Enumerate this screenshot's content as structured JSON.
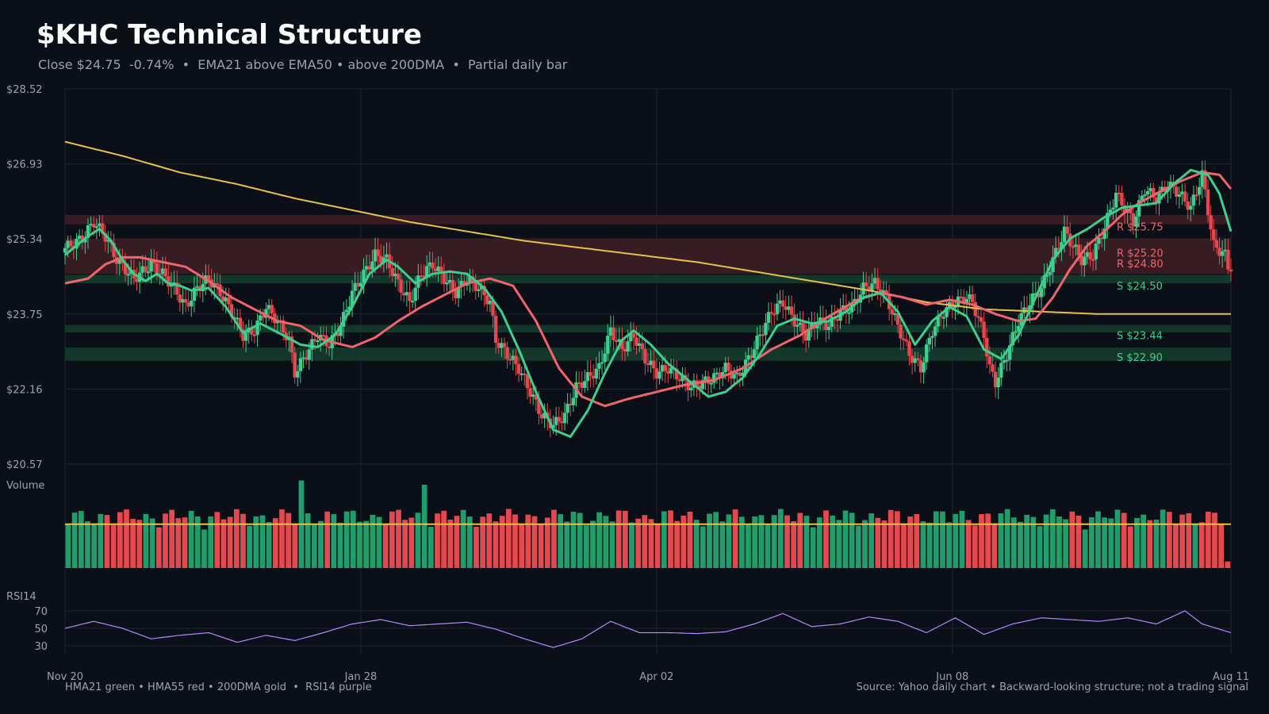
{
  "header": {
    "title": "$KHC Technical Structure",
    "subtitle": "Close $24.75  -0.74%  •  EMA21 above EMA50 • above 200DMA  •  Partial daily bar"
  },
  "footer": {
    "left": "HMA21 green • HMA55 red • 200DMA gold  •  RSI14 purple",
    "right": "Source: Yahoo daily chart • Backward-looking structure; not a trading signal"
  },
  "colors": {
    "background": "#0b0f17",
    "up": "#1f9d6b",
    "down": "#e5484d",
    "hma21": "#3ccf8e",
    "hma55": "#f0656b",
    "dma200": "#e8c14a",
    "rsi": "#b388ff",
    "grid": "#1f2633",
    "resistance_zone": "#3a1d24",
    "support_zone": "#143a2c"
  },
  "chart_data": {
    "type": "candlestick",
    "x_tick_labels": [
      "Nov 20",
      "Jan 28",
      "Apr 02",
      "Jun 08",
      "Aug 11"
    ],
    "price_axis": {
      "min": 20.57,
      "max": 28.52,
      "ticks": [
        "$28.52",
        "$26.93",
        "$25.34",
        "$23.75",
        "$22.16",
        "$20.57"
      ]
    },
    "volume_label": "Volume",
    "rsi_label": "RSI14",
    "rsi_ticks": [
      "70",
      "50",
      "30"
    ],
    "levels": [
      {
        "kind": "resistance",
        "label": "R $25.75",
        "value": 25.75
      },
      {
        "kind": "resistance",
        "label": "R $25.20",
        "value": 25.2
      },
      {
        "kind": "resistance",
        "label": "R $24.80",
        "value": 24.8
      },
      {
        "kind": "support",
        "label": "S $24.50",
        "value": 24.5
      },
      {
        "kind": "support",
        "label": "S $23.44",
        "value": 23.44
      },
      {
        "kind": "support",
        "label": "S $22.90",
        "value": 22.9
      }
    ],
    "close_path": [
      [
        0,
        25.15
      ],
      [
        6,
        25.35
      ],
      [
        10,
        25.7
      ],
      [
        14,
        25.4
      ],
      [
        18,
        24.9
      ],
      [
        24,
        24.5
      ],
      [
        30,
        24.8
      ],
      [
        34,
        24.6
      ],
      [
        38,
        24.3
      ],
      [
        42,
        23.9
      ],
      [
        46,
        24.3
      ],
      [
        50,
        24.5
      ],
      [
        54,
        24.2
      ],
      [
        58,
        23.8
      ],
      [
        62,
        23.3
      ],
      [
        66,
        23.4
      ],
      [
        70,
        23.9
      ],
      [
        74,
        23.6
      ],
      [
        78,
        23.2
      ],
      [
        80,
        22.5
      ],
      [
        84,
        22.9
      ],
      [
        88,
        23.3
      ],
      [
        92,
        23.1
      ],
      [
        96,
        23.5
      ],
      [
        100,
        24.2
      ],
      [
        104,
        24.6
      ],
      [
        108,
        25.0
      ],
      [
        112,
        24.9
      ],
      [
        116,
        24.4
      ],
      [
        120,
        24.0
      ],
      [
        124,
        24.6
      ],
      [
        128,
        24.8
      ],
      [
        132,
        24.5
      ],
      [
        136,
        24.2
      ],
      [
        140,
        24.5
      ],
      [
        144,
        24.3
      ],
      [
        148,
        24.0
      ],
      [
        150,
        23.2
      ],
      [
        154,
        22.9
      ],
      [
        158,
        22.6
      ],
      [
        162,
        22.1
      ],
      [
        166,
        21.6
      ],
      [
        170,
        21.4
      ],
      [
        174,
        21.6
      ],
      [
        178,
        22.2
      ],
      [
        182,
        22.4
      ],
      [
        186,
        22.6
      ],
      [
        190,
        23.4
      ],
      [
        194,
        23.0
      ],
      [
        198,
        23.3
      ],
      [
        202,
        22.8
      ],
      [
        206,
        22.5
      ],
      [
        210,
        22.6
      ],
      [
        214,
        22.4
      ],
      [
        218,
        22.2
      ],
      [
        222,
        22.3
      ],
      [
        226,
        22.4
      ],
      [
        230,
        22.6
      ],
      [
        234,
        22.4
      ],
      [
        238,
        22.8
      ],
      [
        242,
        23.3
      ],
      [
        246,
        23.8
      ],
      [
        250,
        24.0
      ],
      [
        254,
        23.6
      ],
      [
        258,
        23.3
      ],
      [
        262,
        23.6
      ],
      [
        266,
        23.5
      ],
      [
        270,
        23.8
      ],
      [
        274,
        23.9
      ],
      [
        278,
        24.3
      ],
      [
        282,
        24.4
      ],
      [
        286,
        24.1
      ],
      [
        290,
        23.5
      ],
      [
        294,
        22.9
      ],
      [
        298,
        22.6
      ],
      [
        302,
        23.4
      ],
      [
        306,
        23.8
      ],
      [
        310,
        24.0
      ],
      [
        314,
        24.1
      ],
      [
        316,
        24.0
      ],
      [
        320,
        23.3
      ],
      [
        322,
        22.6
      ],
      [
        324,
        22.3
      ],
      [
        328,
        22.9
      ],
      [
        332,
        23.6
      ],
      [
        336,
        24.0
      ],
      [
        340,
        24.3
      ],
      [
        344,
        24.9
      ],
      [
        348,
        25.5
      ],
      [
        350,
        25.3
      ],
      [
        354,
        24.9
      ],
      [
        358,
        25.0
      ],
      [
        362,
        25.6
      ],
      [
        366,
        26.3
      ],
      [
        370,
        25.9
      ],
      [
        372,
        25.7
      ],
      [
        376,
        26.4
      ],
      [
        380,
        26.2
      ],
      [
        384,
        26.5
      ],
      [
        388,
        26.3
      ],
      [
        392,
        26.0
      ],
      [
        396,
        26.7
      ],
      [
        400,
        25.2
      ],
      [
        404,
        25.0
      ],
      [
        405,
        24.75
      ]
    ],
    "hma21_path": [
      [
        0,
        25.0
      ],
      [
        8,
        25.4
      ],
      [
        12,
        25.55
      ],
      [
        16,
        25.3
      ],
      [
        20,
        24.9
      ],
      [
        24,
        24.6
      ],
      [
        28,
        24.45
      ],
      [
        32,
        24.6
      ],
      [
        36,
        24.4
      ],
      [
        40,
        24.35
      ],
      [
        44,
        24.25
      ],
      [
        50,
        24.3
      ],
      [
        56,
        23.9
      ],
      [
        62,
        23.35
      ],
      [
        68,
        23.55
      ],
      [
        76,
        23.3
      ],
      [
        82,
        23.1
      ],
      [
        88,
        23.05
      ],
      [
        94,
        23.3
      ],
      [
        100,
        23.9
      ],
      [
        106,
        24.6
      ],
      [
        112,
        24.9
      ],
      [
        116,
        24.75
      ],
      [
        122,
        24.4
      ],
      [
        128,
        24.6
      ],
      [
        134,
        24.65
      ],
      [
        140,
        24.6
      ],
      [
        146,
        24.3
      ],
      [
        152,
        23.8
      ],
      [
        158,
        23.0
      ],
      [
        164,
        22.1
      ],
      [
        170,
        21.3
      ],
      [
        176,
        21.15
      ],
      [
        182,
        21.7
      ],
      [
        188,
        22.5
      ],
      [
        194,
        23.2
      ],
      [
        198,
        23.4
      ],
      [
        204,
        23.1
      ],
      [
        210,
        22.7
      ],
      [
        218,
        22.3
      ],
      [
        224,
        22.0
      ],
      [
        230,
        22.1
      ],
      [
        236,
        22.4
      ],
      [
        242,
        22.9
      ],
      [
        248,
        23.5
      ],
      [
        254,
        23.65
      ],
      [
        260,
        23.55
      ],
      [
        266,
        23.6
      ],
      [
        272,
        23.8
      ],
      [
        278,
        24.1
      ],
      [
        284,
        24.2
      ],
      [
        290,
        23.8
      ],
      [
        296,
        23.1
      ],
      [
        302,
        23.6
      ],
      [
        308,
        23.9
      ],
      [
        314,
        23.7
      ],
      [
        320,
        23.0
      ],
      [
        326,
        22.8
      ],
      [
        332,
        23.3
      ],
      [
        338,
        24.1
      ],
      [
        344,
        24.9
      ],
      [
        350,
        25.35
      ],
      [
        356,
        25.55
      ],
      [
        362,
        25.8
      ],
      [
        368,
        26.0
      ],
      [
        374,
        26.05
      ],
      [
        380,
        26.1
      ],
      [
        386,
        26.5
      ],
      [
        392,
        26.8
      ],
      [
        398,
        26.7
      ],
      [
        402,
        26.3
      ],
      [
        406,
        25.5
      ]
    ],
    "hma55_path": [
      [
        0,
        24.4
      ],
      [
        8,
        24.5
      ],
      [
        14,
        24.8
      ],
      [
        20,
        24.95
      ],
      [
        26,
        24.95
      ],
      [
        34,
        24.85
      ],
      [
        42,
        24.75
      ],
      [
        50,
        24.45
      ],
      [
        58,
        24.1
      ],
      [
        66,
        23.85
      ],
      [
        74,
        23.6
      ],
      [
        82,
        23.5
      ],
      [
        90,
        23.2
      ],
      [
        100,
        23.05
      ],
      [
        108,
        23.25
      ],
      [
        116,
        23.6
      ],
      [
        124,
        23.9
      ],
      [
        132,
        24.15
      ],
      [
        140,
        24.4
      ],
      [
        148,
        24.5
      ],
      [
        156,
        24.35
      ],
      [
        164,
        23.6
      ],
      [
        172,
        22.6
      ],
      [
        180,
        22.0
      ],
      [
        188,
        21.8
      ],
      [
        196,
        21.95
      ],
      [
        206,
        22.1
      ],
      [
        216,
        22.25
      ],
      [
        226,
        22.35
      ],
      [
        236,
        22.6
      ],
      [
        246,
        23.0
      ],
      [
        256,
        23.3
      ],
      [
        266,
        23.7
      ],
      [
        276,
        24.05
      ],
      [
        284,
        24.2
      ],
      [
        292,
        24.1
      ],
      [
        300,
        23.95
      ],
      [
        308,
        24.05
      ],
      [
        316,
        23.95
      ],
      [
        324,
        23.75
      ],
      [
        332,
        23.6
      ],
      [
        338,
        23.65
      ],
      [
        344,
        24.1
      ],
      [
        350,
        24.7
      ],
      [
        356,
        25.2
      ],
      [
        362,
        25.5
      ],
      [
        368,
        25.85
      ],
      [
        374,
        26.1
      ],
      [
        380,
        26.3
      ],
      [
        388,
        26.55
      ],
      [
        396,
        26.75
      ],
      [
        402,
        26.7
      ],
      [
        406,
        26.4
      ]
    ],
    "dma200_path": [
      [
        0,
        27.4
      ],
      [
        20,
        27.1
      ],
      [
        40,
        26.75
      ],
      [
        60,
        26.5
      ],
      [
        80,
        26.2
      ],
      [
        100,
        25.95
      ],
      [
        120,
        25.7
      ],
      [
        140,
        25.5
      ],
      [
        160,
        25.3
      ],
      [
        180,
        25.15
      ],
      [
        200,
        25.0
      ],
      [
        220,
        24.85
      ],
      [
        240,
        24.65
      ],
      [
        260,
        24.45
      ],
      [
        280,
        24.25
      ],
      [
        300,
        24.0
      ],
      [
        320,
        23.85
      ],
      [
        340,
        23.8
      ],
      [
        360,
        23.75
      ],
      [
        380,
        23.75
      ],
      [
        406,
        23.75
      ]
    ],
    "rsi_path": [
      [
        0,
        50
      ],
      [
        10,
        58
      ],
      [
        20,
        50
      ],
      [
        30,
        38
      ],
      [
        40,
        42
      ],
      [
        50,
        45
      ],
      [
        60,
        34
      ],
      [
        70,
        42
      ],
      [
        80,
        36
      ],
      [
        90,
        45
      ],
      [
        100,
        55
      ],
      [
        110,
        60
      ],
      [
        120,
        53
      ],
      [
        130,
        55
      ],
      [
        140,
        57
      ],
      [
        150,
        49
      ],
      [
        160,
        38
      ],
      [
        170,
        28
      ],
      [
        180,
        38
      ],
      [
        190,
        58
      ],
      [
        200,
        45
      ],
      [
        210,
        45
      ],
      [
        220,
        44
      ],
      [
        230,
        46
      ],
      [
        240,
        55
      ],
      [
        250,
        67
      ],
      [
        260,
        52
      ],
      [
        270,
        55
      ],
      [
        280,
        63
      ],
      [
        290,
        58
      ],
      [
        300,
        45
      ],
      [
        310,
        62
      ],
      [
        320,
        43
      ],
      [
        330,
        55
      ],
      [
        340,
        62
      ],
      [
        350,
        60
      ],
      [
        360,
        58
      ],
      [
        370,
        62
      ],
      [
        380,
        55
      ],
      [
        390,
        70
      ],
      [
        396,
        55
      ],
      [
        406,
        45
      ]
    ],
    "volume_avg": 1.0,
    "volume_peaks": [
      {
        "index": 81,
        "value": 2.0
      },
      {
        "index": 124,
        "value": 1.9
      }
    ]
  }
}
